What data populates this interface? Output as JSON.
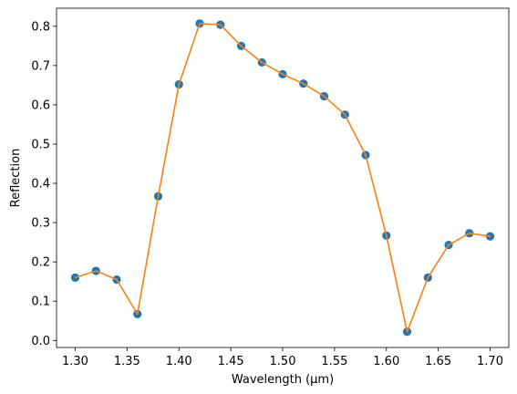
{
  "chart_data": {
    "type": "line",
    "xlabel": "Wavelength (μm)",
    "ylabel": "Reflection",
    "xlim": [
      1.282,
      1.718
    ],
    "ylim": [
      -0.018,
      0.846
    ],
    "xticks": [
      1.3,
      1.35,
      1.4,
      1.45,
      1.5,
      1.55,
      1.6,
      1.65,
      1.7
    ],
    "xtick_labels": [
      "1.30",
      "1.35",
      "1.40",
      "1.45",
      "1.50",
      "1.55",
      "1.60",
      "1.65",
      "1.70"
    ],
    "yticks": [
      0.0,
      0.1,
      0.2,
      0.3,
      0.4,
      0.5,
      0.6,
      0.7,
      0.8
    ],
    "ytick_labels": [
      "0.0",
      "0.1",
      "0.2",
      "0.3",
      "0.4",
      "0.5",
      "0.6",
      "0.7",
      "0.8"
    ],
    "grid": false,
    "legend": "none",
    "colors": {
      "markers": "#1f77b4",
      "line": "#ff7f0e"
    },
    "series": [
      {
        "style": "scatter+line",
        "x": [
          1.3,
          1.32,
          1.34,
          1.36,
          1.38,
          1.4,
          1.42,
          1.44,
          1.46,
          1.48,
          1.5,
          1.52,
          1.54,
          1.56,
          1.58,
          1.6,
          1.62,
          1.64,
          1.66,
          1.68,
          1.7
        ],
        "y": [
          0.16,
          0.177,
          0.155,
          0.067,
          0.367,
          0.652,
          0.807,
          0.804,
          0.75,
          0.708,
          0.678,
          0.654,
          0.622,
          0.575,
          0.472,
          0.267,
          0.022,
          0.16,
          0.243,
          0.273,
          0.265
        ]
      }
    ]
  }
}
